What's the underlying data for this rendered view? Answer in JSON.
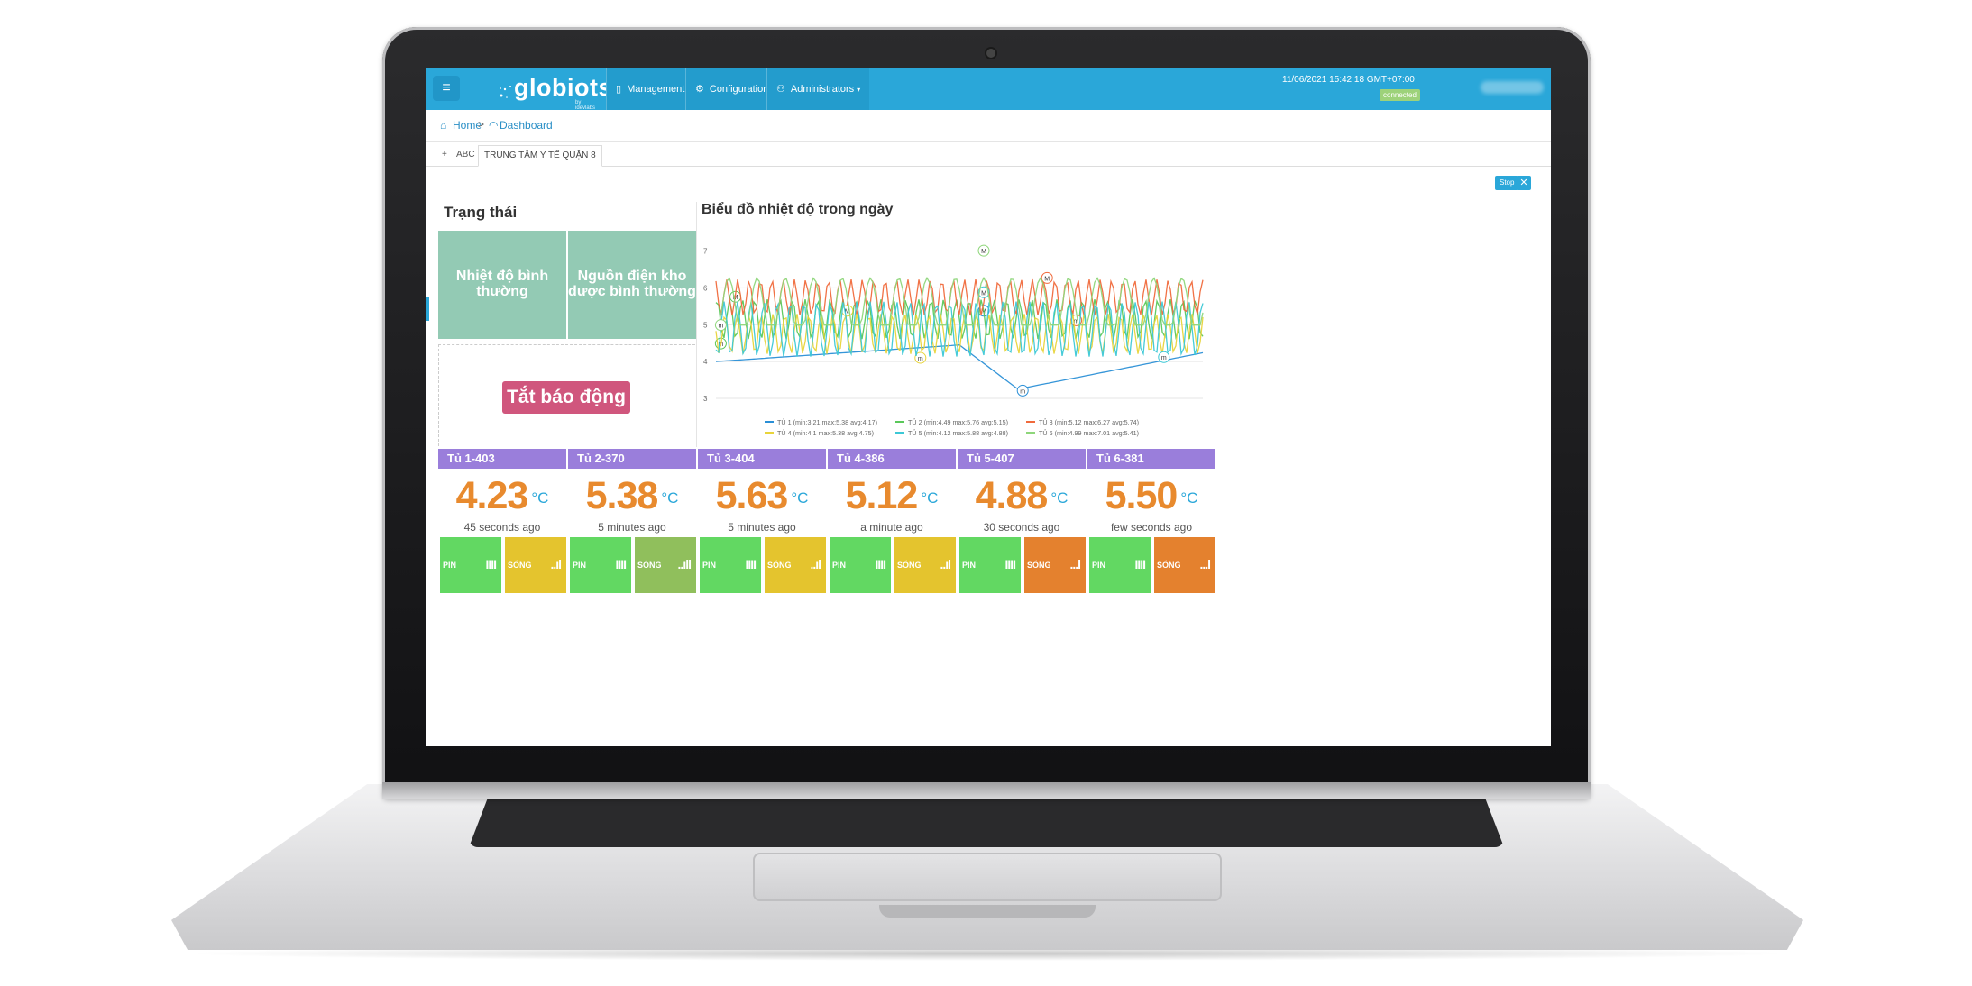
{
  "app": {
    "logo": "globiots",
    "logo_sub": "by idevlabs",
    "datetime": "11/06/2021 15:42:18 GMT+07:00",
    "connection": "connected"
  },
  "nav": {
    "menu_icon": "hamburger-icon",
    "items": [
      {
        "label": "Management",
        "icon": "phone-icon"
      },
      {
        "label": "Configuration",
        "icon": "gears-icon"
      },
      {
        "label": "Administrators",
        "icon": "users-icon"
      }
    ]
  },
  "breadcrumb": {
    "home": "Home",
    "separator": ">",
    "current": "Dashboard"
  },
  "tabs": {
    "add": "+",
    "items": [
      {
        "label": "ABC"
      },
      {
        "label": "TRUNG TÂM Y TẾ QUẬN 8"
      }
    ]
  },
  "controls": {
    "stop": "Stop",
    "close": "✕"
  },
  "status": {
    "title": "Trạng thái",
    "tiles": [
      {
        "label": "Nhiệt độ bình thường"
      },
      {
        "label": "Nguồn điện kho dược bình thường"
      }
    ],
    "alarm_button": "Tắt báo động"
  },
  "chart_data": {
    "type": "line",
    "title": "Biểu đồ nhiệt độ trong ngày",
    "ylim": [
      3,
      7.6
    ],
    "yticks": [
      "3",
      "4",
      "5",
      "6",
      "7"
    ],
    "grid": true,
    "legend_position": "bottom",
    "series": [
      {
        "name": "TỦ 1 (min:3.21 max:5.38 avg:4.17)",
        "color": "#2a8fd6",
        "min": 3.21,
        "max": 5.38,
        "avg": 4.17
      },
      {
        "name": "TỦ 2 (min:4.49 max:5.76 avg:5.15)",
        "color": "#5ac85a",
        "min": 4.49,
        "max": 5.76,
        "avg": 5.15
      },
      {
        "name": "TỦ 3 (min:5.12 max:6.27 avg:5.74)",
        "color": "#f06a3c",
        "min": 5.12,
        "max": 6.27,
        "avg": 5.74
      },
      {
        "name": "TỦ 4 (min:4.1 max:5.38 avg:4.75)",
        "color": "#e8d43a",
        "min": 4.1,
        "max": 5.38,
        "avg": 4.75
      },
      {
        "name": "TỦ 5 (min:4.12 max:5.88 avg:4.88)",
        "color": "#3cc8d6",
        "min": 4.12,
        "max": 5.88,
        "avg": 4.88
      },
      {
        "name": "TỦ 6 (min:4.99 max:7.01 avg:5.41)",
        "color": "#8ed67a",
        "min": 4.99,
        "max": 7.01,
        "avg": 5.41
      }
    ],
    "markers": [
      "M",
      "m"
    ]
  },
  "cards": [
    {
      "title": "Tủ 1-403",
      "temp": "4.23",
      "unit": "°C",
      "ago": "45 seconds ago",
      "pin_label": "PIN",
      "pin_bars": "IIII",
      "pin_color": "#62d862",
      "wave_label": "SÓNG",
      "wave_bars": "..ıl",
      "wave_color": "#e4c42e"
    },
    {
      "title": "Tủ 2-370",
      "temp": "5.38",
      "unit": "°C",
      "ago": "5 minutes ago",
      "pin_label": "PIN",
      "pin_bars": "IIII",
      "pin_color": "#62d862",
      "wave_label": "SÓNG",
      "wave_bars": "..ıll",
      "wave_color": "#90bf5c"
    },
    {
      "title": "Tủ 3-404",
      "temp": "5.63",
      "unit": "°C",
      "ago": "5 minutes ago",
      "pin_label": "PIN",
      "pin_bars": "IIII",
      "pin_color": "#62d862",
      "wave_label": "SÓNG",
      "wave_bars": "..ıl",
      "wave_color": "#e4c42e"
    },
    {
      "title": "Tủ 4-386",
      "temp": "5.12",
      "unit": "°C",
      "ago": "a minute ago",
      "pin_label": "PIN",
      "pin_bars": "IIII",
      "pin_color": "#62d862",
      "wave_label": "SÓNG",
      "wave_bars": "..ıl",
      "wave_color": "#e4c42e"
    },
    {
      "title": "Tủ 5-407",
      "temp": "4.88",
      "unit": "°C",
      "ago": "30 seconds ago",
      "pin_label": "PIN",
      "pin_bars": "IIII",
      "pin_color": "#62d862",
      "wave_label": "SÓNG",
      "wave_bars": "...l",
      "wave_color": "#e4812e"
    },
    {
      "title": "Tủ 6-381",
      "temp": "5.50",
      "unit": "°C",
      "ago": "few seconds ago",
      "pin_label": "PIN",
      "pin_bars": "IIII",
      "pin_color": "#62d862",
      "wave_label": "SÓNG",
      "wave_bars": "...l",
      "wave_color": "#e4812e"
    }
  ]
}
